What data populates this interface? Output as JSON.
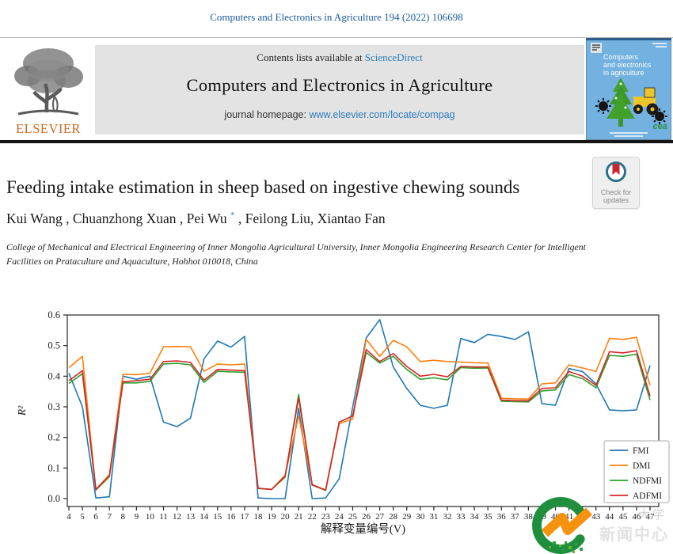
{
  "page": {
    "citation": "Computers and Electronics in Agriculture 194 (2022) 106698",
    "banner": {
      "contents_line_prefix": "Contents lists available at ",
      "sciencedirect": "ScienceDirect",
      "journal_title": "Computers and Electronics in Agriculture",
      "homepage_prefix": "journal homepage: ",
      "homepage_url": "www.elsevier.com/locate/compag"
    },
    "elsevier_logo_text": "ELSEVIER",
    "cover": {
      "title_lines": [
        "Computers",
        "and electronics",
        "in agriculture"
      ],
      "cea": "cea"
    },
    "check_badge": {
      "line1": "Check for",
      "line2": "updates"
    },
    "article": {
      "title": "Feeding intake estimation in sheep based on ingestive chewing sounds",
      "authors_part1": "Kui Wang , Chuanzhong Xuan , Pei Wu ",
      "corresponding_mark": "*",
      "authors_part2": " , Feilong Liu, Xiantao Fan",
      "affiliation": "College of Mechanical and Electrical Engineering of Inner Mongolia Agricultural University, Inner Mongolia Engineering Research Center for Intelligent Facilities on Prataculture and Aquaculture, Hohhot 010018, China"
    },
    "watermark": {
      "line1": "大学",
      "line2": "新闻中心"
    }
  },
  "chart_data": {
    "type": "line",
    "title": "",
    "xlabel": "解释变量编号(V)",
    "ylabel": "R²",
    "ylim": [
      0,
      0.6
    ],
    "yticks": [
      0.0,
      0.1,
      0.2,
      0.3,
      0.4,
      0.5,
      0.6
    ],
    "grid": false,
    "legend_position": "lower right",
    "x": [
      4,
      5,
      6,
      7,
      8,
      9,
      10,
      11,
      12,
      13,
      14,
      15,
      16,
      17,
      18,
      19,
      20,
      21,
      22,
      23,
      24,
      25,
      26,
      27,
      28,
      29,
      30,
      31,
      32,
      33,
      34,
      35,
      36,
      37,
      38,
      39,
      40,
      41,
      42,
      43,
      44,
      45,
      46,
      47
    ],
    "series": [
      {
        "name": "FMI",
        "color": "#1f77b4",
        "values": [
          0.41,
          0.3,
          0.002,
          0.006,
          0.4,
          0.39,
          0.4,
          0.25,
          0.235,
          0.263,
          0.457,
          0.515,
          0.495,
          0.53,
          0.002,
          0.0,
          0.0,
          0.295,
          0.0,
          0.002,
          0.065,
          0.3,
          0.525,
          0.585,
          0.43,
          0.36,
          0.305,
          0.295,
          0.305,
          0.523,
          0.51,
          0.537,
          0.53,
          0.52,
          0.545,
          0.31,
          0.305,
          0.425,
          0.415,
          0.375,
          0.29,
          0.287,
          0.29,
          0.435
        ]
      },
      {
        "name": "DMI",
        "color": "#ff7f0e",
        "values": [
          0.428,
          0.465,
          0.03,
          0.078,
          0.406,
          0.405,
          0.41,
          0.496,
          0.497,
          0.496,
          0.416,
          0.44,
          0.437,
          0.44,
          0.034,
          0.03,
          0.076,
          0.27,
          0.046,
          0.028,
          0.245,
          0.26,
          0.52,
          0.465,
          0.517,
          0.496,
          0.448,
          0.452,
          0.448,
          0.446,
          0.444,
          0.443,
          0.328,
          0.326,
          0.325,
          0.375,
          0.378,
          0.437,
          0.427,
          0.415,
          0.524,
          0.52,
          0.527,
          0.37
        ]
      },
      {
        "name": "NDFMI",
        "color": "#2ca02c",
        "values": [
          0.376,
          0.408,
          0.028,
          0.072,
          0.378,
          0.378,
          0.383,
          0.44,
          0.442,
          0.437,
          0.38,
          0.416,
          0.414,
          0.413,
          0.033,
          0.03,
          0.07,
          0.34,
          0.044,
          0.027,
          0.25,
          0.27,
          0.478,
          0.443,
          0.465,
          0.422,
          0.39,
          0.395,
          0.388,
          0.428,
          0.426,
          0.427,
          0.318,
          0.317,
          0.316,
          0.352,
          0.355,
          0.405,
          0.392,
          0.362,
          0.468,
          0.465,
          0.472,
          0.322
        ]
      },
      {
        "name": "ADFMI",
        "color": "#d62728",
        "values": [
          0.385,
          0.418,
          0.03,
          0.075,
          0.382,
          0.385,
          0.39,
          0.448,
          0.45,
          0.445,
          0.387,
          0.422,
          0.42,
          0.418,
          0.034,
          0.03,
          0.074,
          0.33,
          0.045,
          0.028,
          0.25,
          0.27,
          0.487,
          0.448,
          0.474,
          0.432,
          0.4,
          0.406,
          0.398,
          0.432,
          0.43,
          0.43,
          0.322,
          0.32,
          0.32,
          0.36,
          0.362,
          0.415,
          0.4,
          0.37,
          0.48,
          0.476,
          0.483,
          0.335
        ]
      }
    ]
  }
}
